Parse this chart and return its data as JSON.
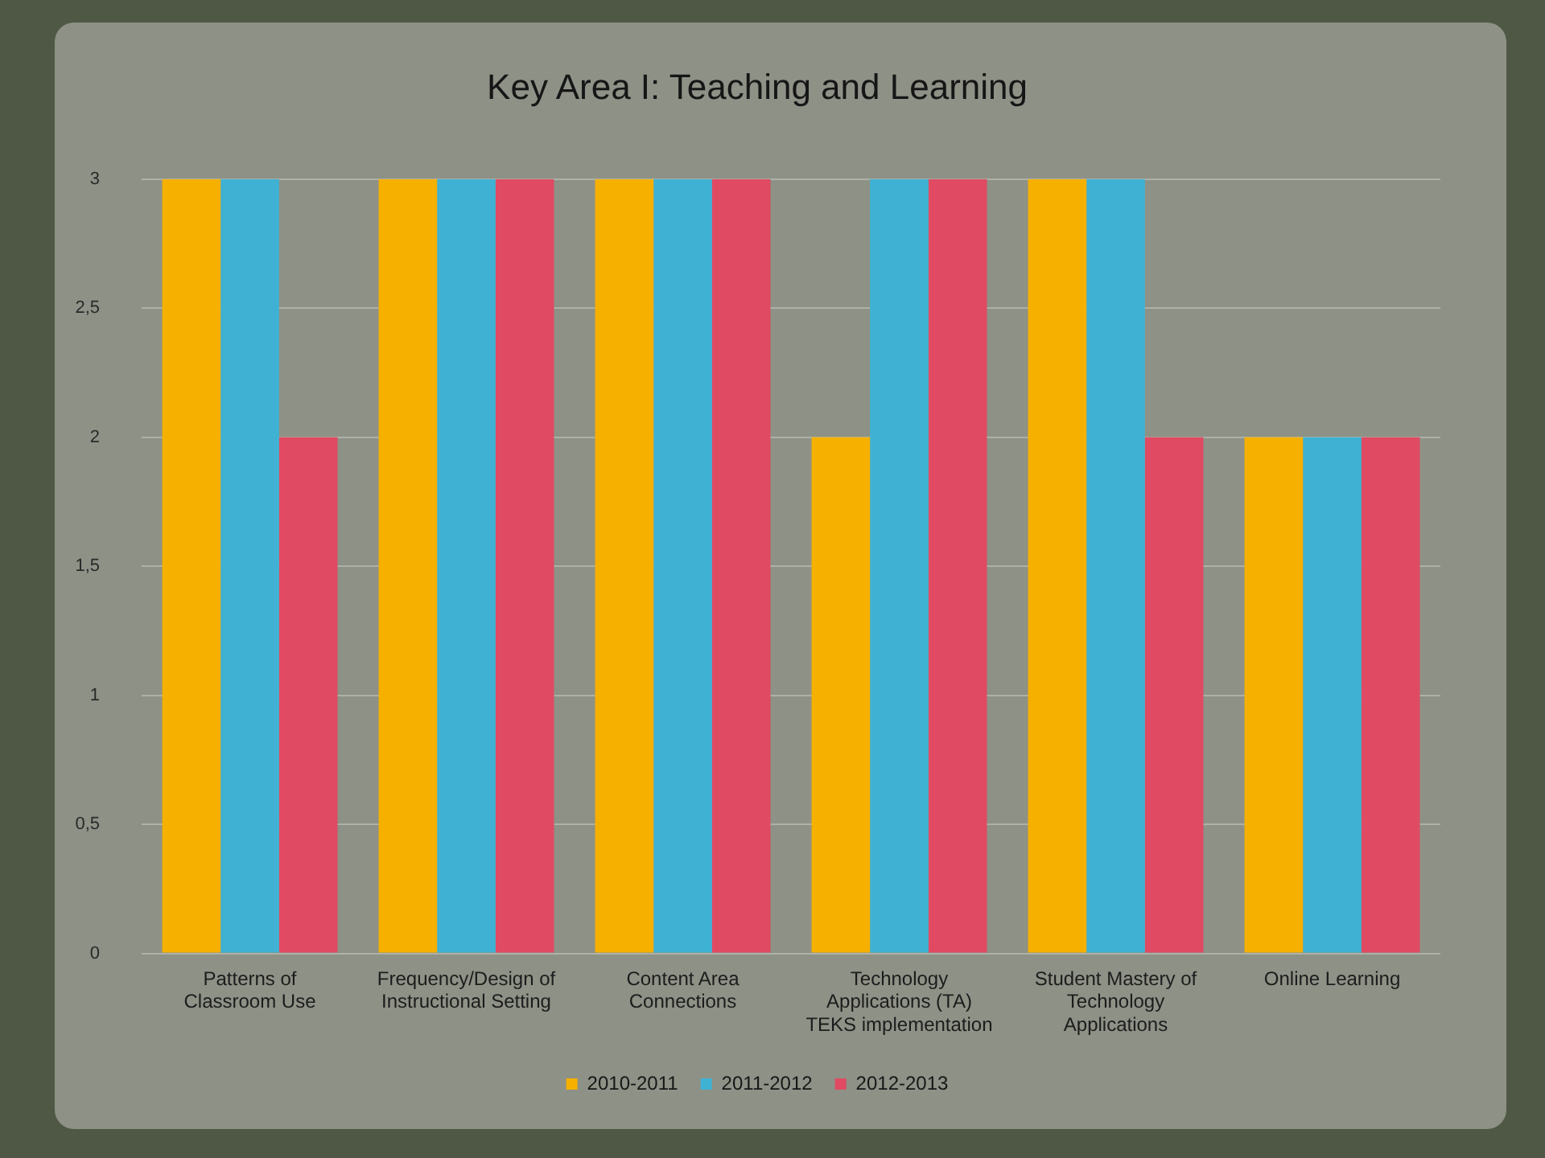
{
  "chart_data": {
    "type": "bar",
    "title": "Key Area I: Teaching and Learning",
    "categories": [
      "Patterns of Classroom Use",
      "Frequency/Design of Instructional Setting",
      "Content Area Connections",
      "Technology Applications (TA) TEKS implementation",
      "Student Mastery of Technology Applications",
      "Online Learning"
    ],
    "series": [
      {
        "name": "2010-2011",
        "color": "#f5b000",
        "values": [
          3,
          3,
          3,
          2,
          3,
          2
        ]
      },
      {
        "name": "2011-2012",
        "color": "#3fb2d4",
        "values": [
          3,
          3,
          3,
          3,
          3,
          2
        ]
      },
      {
        "name": "2012-2013",
        "color": "#e04a62",
        "values": [
          2,
          3,
          3,
          3,
          2,
          2
        ]
      }
    ],
    "ylim": [
      0,
      3
    ],
    "yticks": [
      0,
      {
        "value": 0.5,
        "label": "0,5"
      },
      1,
      {
        "value": 1.5,
        "label": "1,5"
      },
      2,
      {
        "value": 2.5,
        "label": "2,5"
      },
      3
    ],
    "grid": "y",
    "legend": "bottom"
  }
}
